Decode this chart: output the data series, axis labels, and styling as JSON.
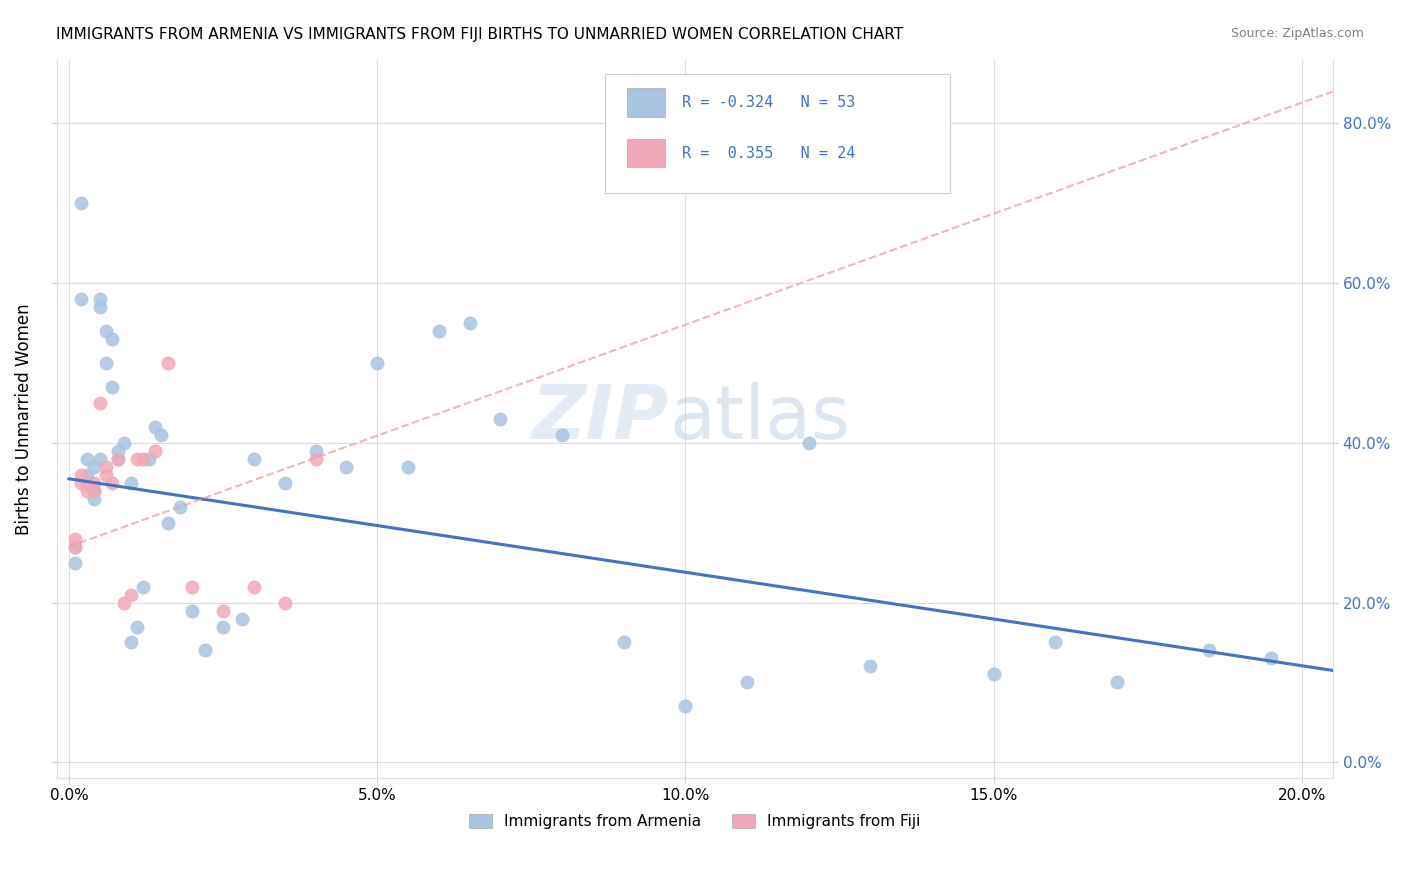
{
  "title": "IMMIGRANTS FROM ARMENIA VS IMMIGRANTS FROM FIJI BIRTHS TO UNMARRIED WOMEN CORRELATION CHART",
  "source": "Source: ZipAtlas.com",
  "ylabel_label": "Births to Unmarried Women",
  "legend_armenia": "Immigrants from Armenia",
  "legend_fiji": "Immigrants from Fiji",
  "r_armenia": "-0.324",
  "n_armenia": "53",
  "r_fiji": "0.355",
  "n_fiji": "24",
  "color_armenia": "#a8c4e0",
  "color_fiji": "#f0a8b8",
  "trend_armenia_color": "#4472c4",
  "trend_fiji_color": "#e8a0a8",
  "armenia_x": [
    0.001,
    0.001,
    0.002,
    0.002,
    0.003,
    0.003,
    0.003,
    0.004,
    0.004,
    0.004,
    0.005,
    0.005,
    0.005,
    0.006,
    0.006,
    0.007,
    0.007,
    0.008,
    0.008,
    0.009,
    0.01,
    0.01,
    0.011,
    0.012,
    0.013,
    0.014,
    0.015,
    0.016,
    0.018,
    0.02,
    0.022,
    0.025,
    0.028,
    0.03,
    0.035,
    0.04,
    0.045,
    0.05,
    0.055,
    0.06,
    0.065,
    0.07,
    0.08,
    0.09,
    0.1,
    0.11,
    0.12,
    0.13,
    0.15,
    0.16,
    0.17,
    0.185,
    0.195
  ],
  "armenia_y": [
    0.25,
    0.27,
    0.7,
    0.58,
    0.38,
    0.35,
    0.36,
    0.37,
    0.34,
    0.33,
    0.38,
    0.57,
    0.58,
    0.54,
    0.5,
    0.53,
    0.47,
    0.38,
    0.39,
    0.4,
    0.35,
    0.15,
    0.17,
    0.22,
    0.38,
    0.42,
    0.41,
    0.3,
    0.32,
    0.19,
    0.14,
    0.17,
    0.18,
    0.38,
    0.35,
    0.39,
    0.37,
    0.5,
    0.37,
    0.54,
    0.55,
    0.43,
    0.41,
    0.15,
    0.07,
    0.1,
    0.4,
    0.12,
    0.11,
    0.15,
    0.1,
    0.14,
    0.13
  ],
  "fiji_x": [
    0.001,
    0.001,
    0.002,
    0.002,
    0.003,
    0.003,
    0.004,
    0.004,
    0.005,
    0.006,
    0.006,
    0.007,
    0.008,
    0.009,
    0.01,
    0.011,
    0.012,
    0.014,
    0.016,
    0.02,
    0.025,
    0.03,
    0.035,
    0.04
  ],
  "fiji_y": [
    0.27,
    0.28,
    0.35,
    0.36,
    0.35,
    0.34,
    0.34,
    0.35,
    0.45,
    0.36,
    0.37,
    0.35,
    0.38,
    0.2,
    0.21,
    0.38,
    0.38,
    0.39,
    0.5,
    0.22,
    0.19,
    0.22,
    0.2,
    0.38
  ],
  "arm_trend_x": [
    0.0,
    0.205
  ],
  "arm_trend_y": [
    0.355,
    0.115
  ],
  "fiji_trend_x": [
    0.0,
    0.205
  ],
  "fiji_trend_y": [
    0.27,
    0.84
  ],
  "xlim": [
    -0.002,
    0.205
  ],
  "ylim": [
    -0.02,
    0.88
  ],
  "xticks": [
    0.0,
    0.05,
    0.1,
    0.15,
    0.2
  ],
  "yticks": [
    0.0,
    0.2,
    0.4,
    0.6,
    0.8
  ]
}
